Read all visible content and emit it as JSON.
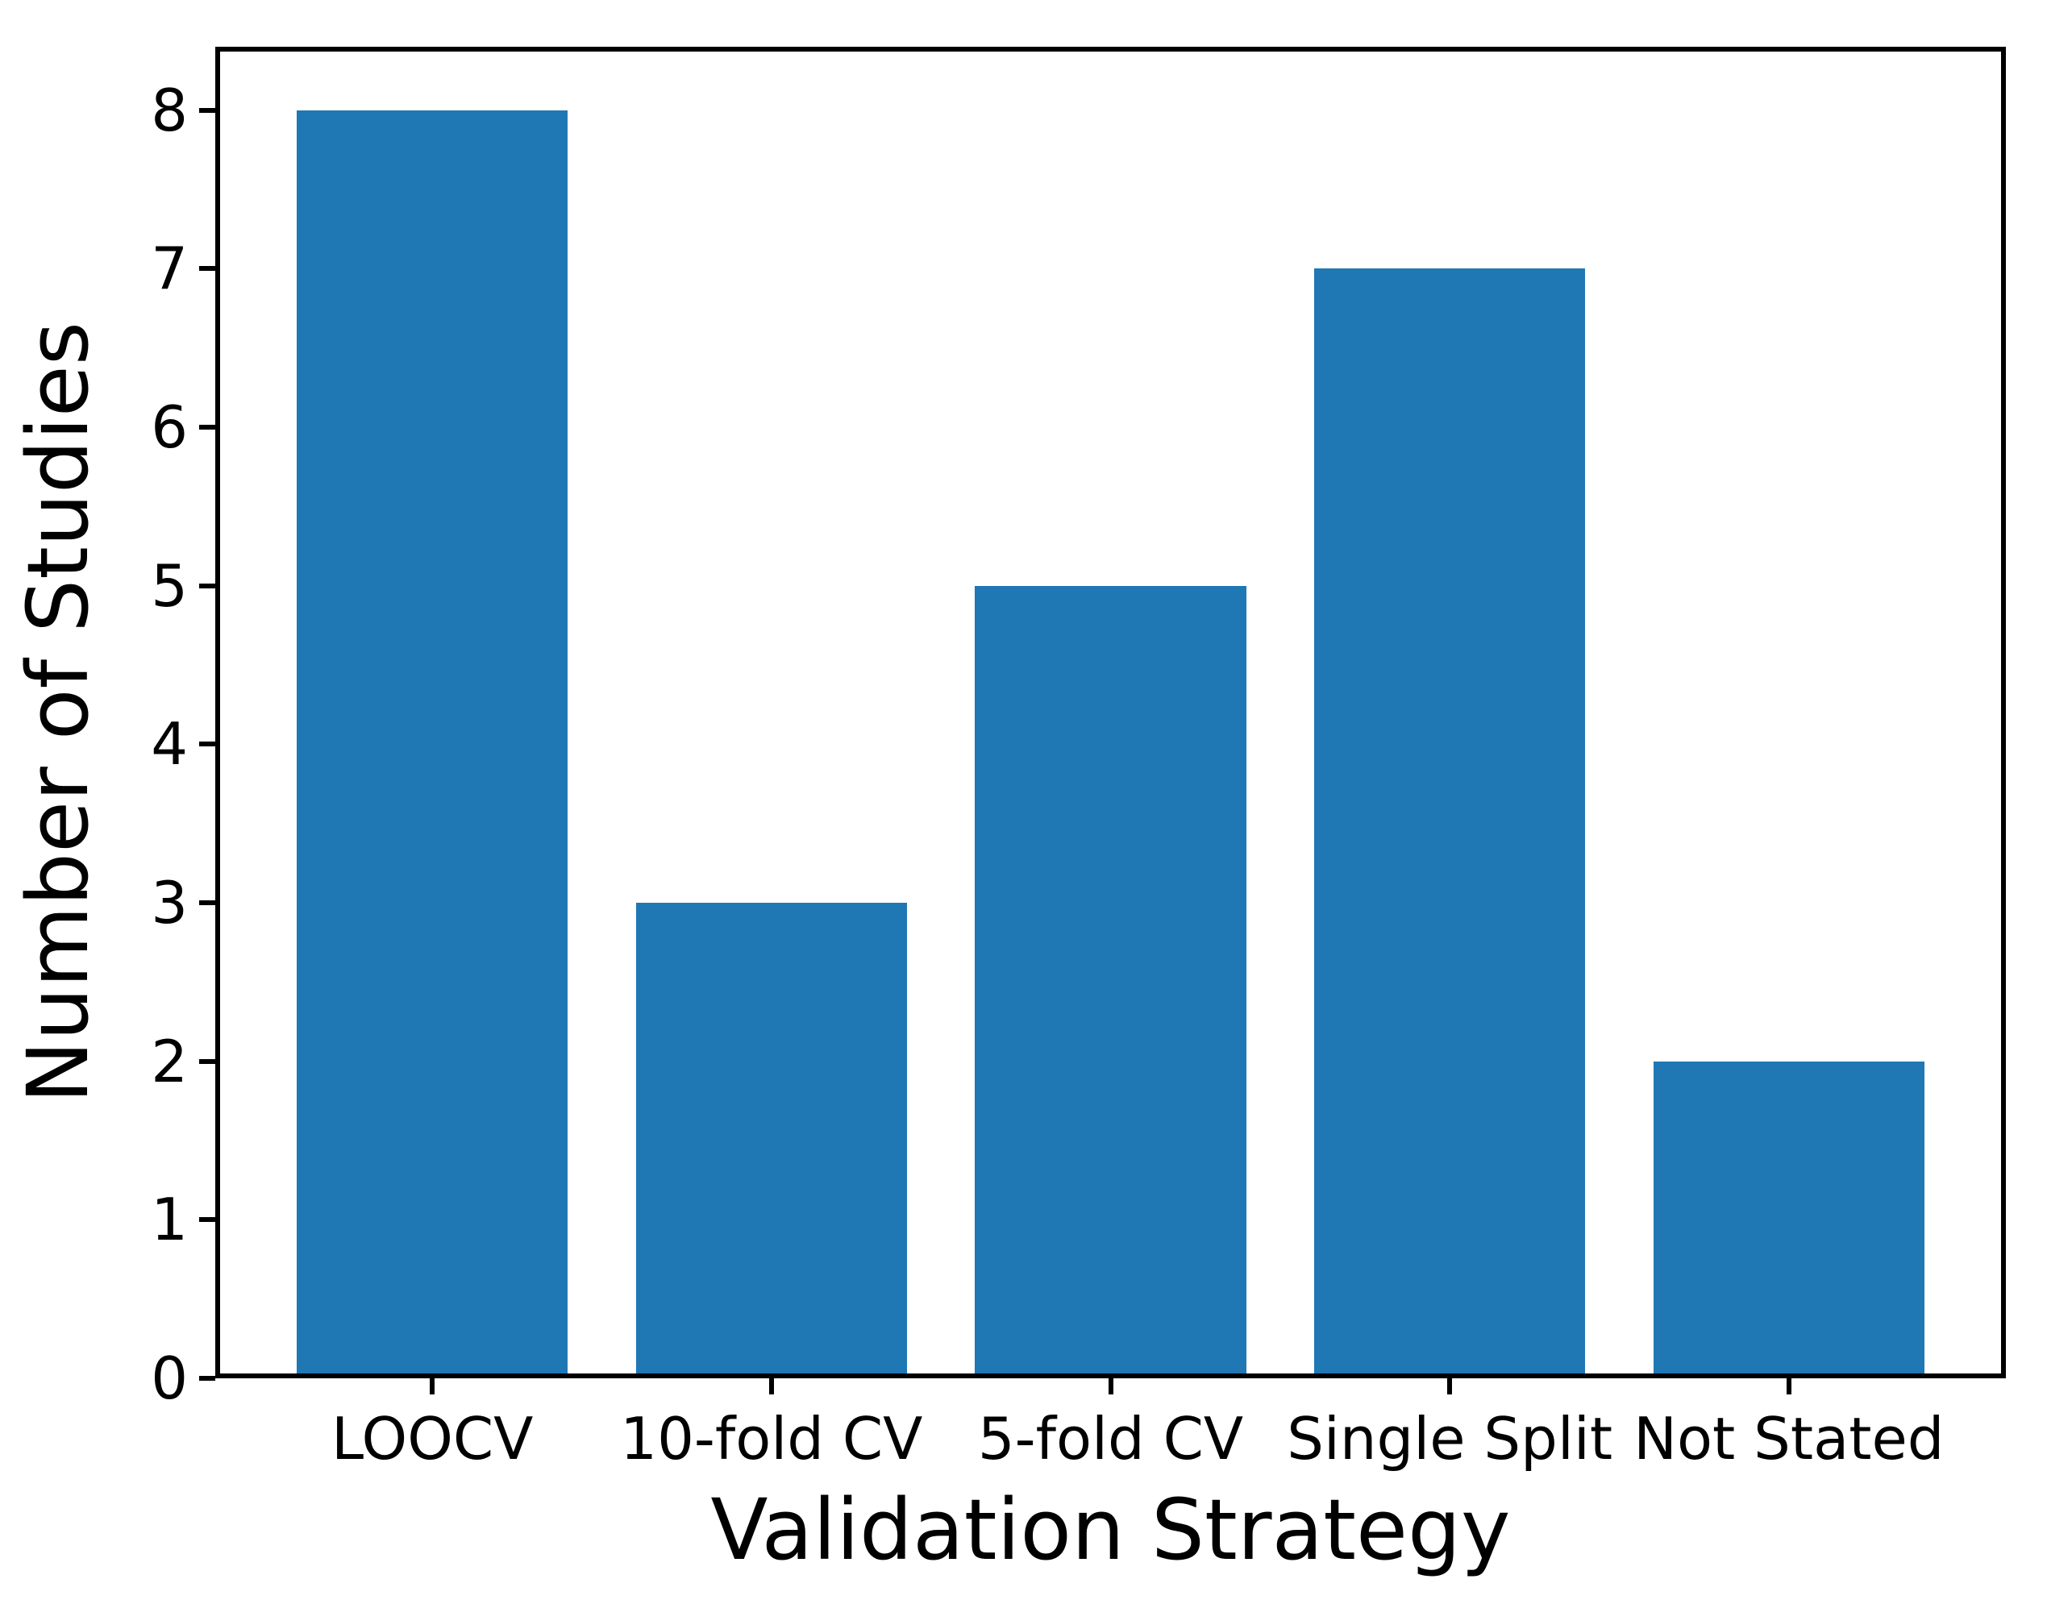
{
  "chart_data": {
    "type": "bar",
    "categories": [
      "LOOCV",
      "10-fold CV",
      "5-fold CV",
      "Single Split",
      "Not Stated"
    ],
    "values": [
      8,
      3,
      5,
      7,
      2
    ],
    "title": "",
    "xlabel": "Validation Strategy",
    "ylabel": "Number of Studies",
    "yticks": [
      0,
      1,
      2,
      3,
      4,
      5,
      6,
      7,
      8
    ],
    "ylim": [
      0,
      8.4
    ],
    "xlim": [
      -0.64,
      4.64
    ],
    "bar_width": 0.8,
    "bar_color": "#1f77b4",
    "axis_color": "#000000",
    "grid": false,
    "legend": "none"
  }
}
